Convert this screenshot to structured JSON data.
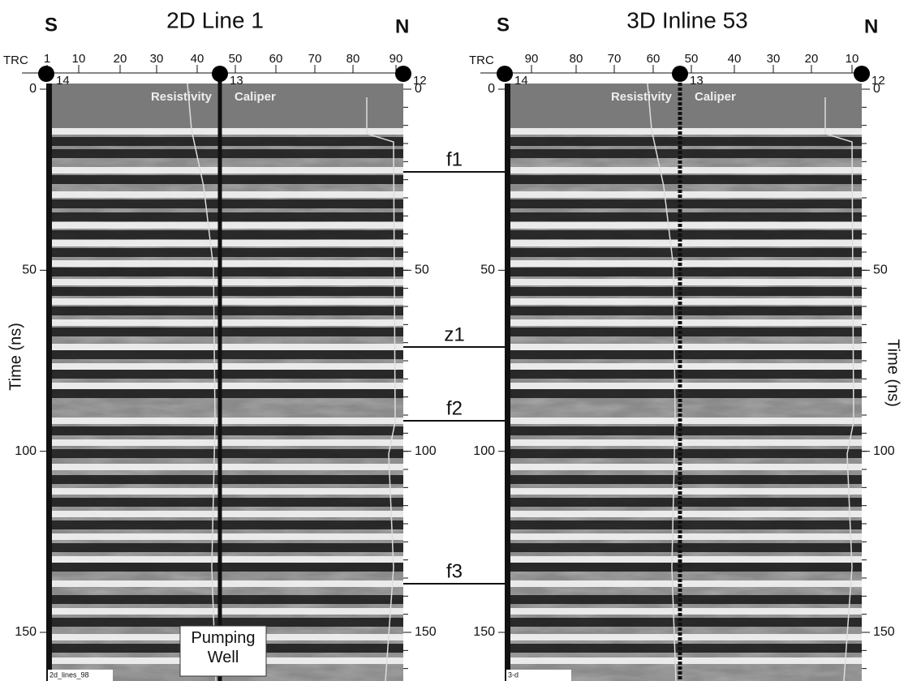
{
  "y_axis_title": "Time (ns)",
  "horizons": [
    "f1",
    "z1",
    "f2",
    "f3"
  ],
  "left_panel": {
    "title": "2D Line 1",
    "south": "S",
    "north": "N",
    "trc_label": "TRC",
    "top_ticks": [
      1,
      10,
      20,
      30,
      40,
      50,
      60,
      70,
      80,
      90
    ],
    "well_labels": [
      14,
      13,
      12
    ],
    "left_axis": [
      0,
      50,
      100,
      150
    ],
    "right_axis": [
      0,
      50,
      100,
      150
    ],
    "track_labels": [
      "Resistivity",
      "Caliper"
    ],
    "annotation": "Pumping Well",
    "stamp": "2d_lines_98"
  },
  "right_panel": {
    "title": "3D Inline 53",
    "south": "S",
    "north": "N",
    "trc_label": "TRC",
    "top_ticks": [
      90,
      80,
      70,
      60,
      50,
      40,
      30,
      20,
      10
    ],
    "well_labels": [
      14,
      13,
      12
    ],
    "left_axis": [
      0,
      50,
      100,
      150
    ],
    "right_axis": [
      0,
      50,
      100,
      150
    ],
    "track_labels": [
      "Resistivity",
      "Caliper"
    ],
    "stamp": "3-d"
  }
}
